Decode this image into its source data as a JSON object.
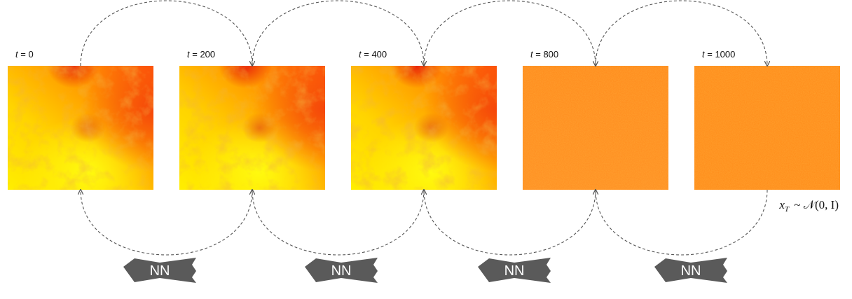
{
  "steps": [
    {
      "var": "t",
      "value": "0",
      "color": "yellow-red"
    },
    {
      "var": "t",
      "value": "200",
      "color": "yellow-red"
    },
    {
      "var": "t",
      "value": "400",
      "color": "yellow-red"
    },
    {
      "var": "t",
      "value": "800",
      "color": "orange-noise"
    },
    {
      "var": "t",
      "value": "1000",
      "color": "orange-noise"
    }
  ],
  "denoiser_label": "NN",
  "prior": {
    "var": "x",
    "sub": "T",
    "dist": "𝒩",
    "args": "(0, I)"
  },
  "colors": {
    "denoiser_fill": "#5a5a5a",
    "arc_stroke": "#555555",
    "clean_light": "#ffe000",
    "clean_dark": "#ff5a0a",
    "noise_base": "#ff8c1a"
  }
}
